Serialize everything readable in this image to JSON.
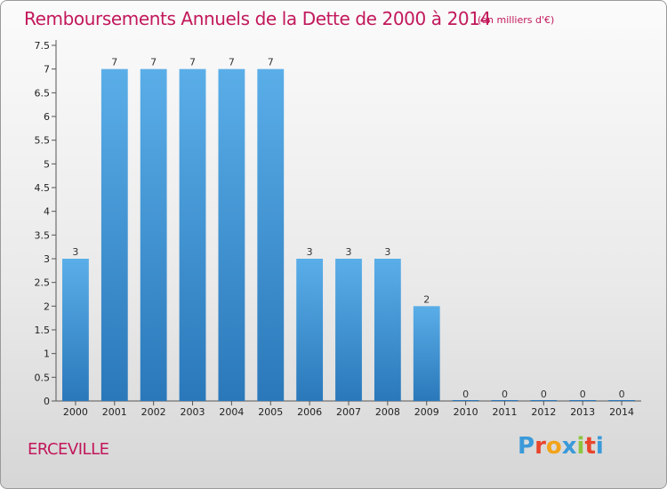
{
  "header": {
    "title": "Remboursements Annuels de la Dette de 2000 à 2014",
    "unit": "(en milliers d'€)"
  },
  "commune": "ERCEVILLE",
  "logo": {
    "letters": [
      "P",
      "r",
      "o",
      "x",
      "i",
      "t",
      "i"
    ],
    "colors": [
      "#3a9ad9",
      "#e8452c",
      "#f2a31a",
      "#3a9ad9",
      "#8cc63f",
      "#e8452c",
      "#3a9ad9"
    ]
  },
  "chart_data": {
    "type": "bar",
    "title": "Remboursements Annuels de la Dette de 2000 à 2014",
    "subtitle": "(en milliers d'€)",
    "categories": [
      "2000",
      "2001",
      "2002",
      "2003",
      "2004",
      "2005",
      "2006",
      "2007",
      "2008",
      "2009",
      "2010",
      "2011",
      "2012",
      "2013",
      "2014"
    ],
    "values": [
      3,
      7,
      7,
      7,
      7,
      7,
      3,
      3,
      3,
      2,
      0,
      0,
      0,
      0,
      0
    ],
    "data_labels": [
      "3",
      "7",
      "7",
      "7",
      "7",
      "7",
      "3",
      "3",
      "3",
      "2",
      "0",
      "0",
      "0",
      "0",
      "0"
    ],
    "y_ticks": [
      "0",
      "0.5",
      "1",
      "1.5",
      "2",
      "2.5",
      "3",
      "3.5",
      "4",
      "4.5",
      "5",
      "5.5",
      "6",
      "6.5",
      "7",
      "7.5"
    ],
    "ylim": [
      0,
      7.5
    ],
    "xlabel": "",
    "ylabel": "",
    "grid": false,
    "bar_color_top": "#5aaee8",
    "bar_color_bottom": "#2a78ba"
  }
}
